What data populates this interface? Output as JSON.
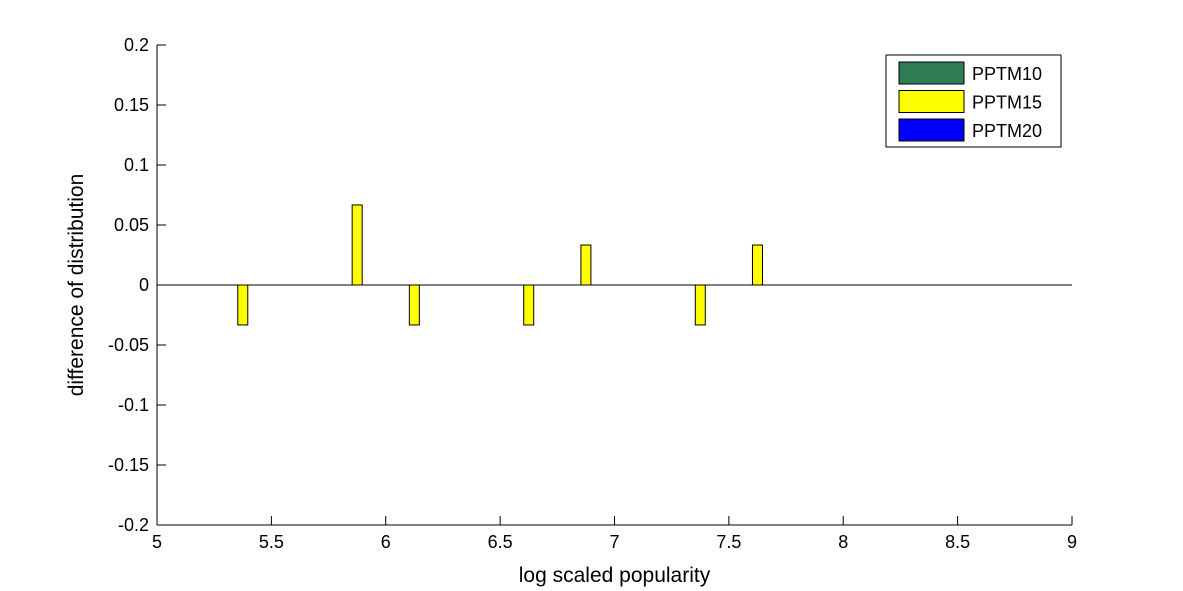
{
  "chart_data": {
    "type": "bar",
    "xlabel": "log scaled popularity",
    "ylabel": "difference of distribution",
    "xlim": [
      5,
      9
    ],
    "ylim": [
      -0.2,
      0.2
    ],
    "xticks": [
      "5",
      "5.5",
      "6",
      "6.5",
      "7",
      "7.5",
      "8",
      "8.5",
      "9"
    ],
    "yticks": [
      "-0.2",
      "-0.15",
      "-0.1",
      "-0.05",
      "0",
      "0.05",
      "0.1",
      "0.15",
      "0.2"
    ],
    "grid": false,
    "legend_position": "top-right",
    "series": [
      {
        "name": "PPTM10",
        "color": "#2e7d55",
        "x": [],
        "values": []
      },
      {
        "name": "PPTM15",
        "color": "#ffff00",
        "x": [
          5.375,
          5.875,
          6.125,
          6.625,
          6.875,
          7.375,
          7.625
        ],
        "values": [
          -0.0333,
          0.0667,
          -0.0333,
          -0.0333,
          0.0333,
          -0.0333,
          0.0333
        ]
      },
      {
        "name": "PPTM20",
        "color": "#0000ff",
        "x": [],
        "values": []
      }
    ]
  }
}
